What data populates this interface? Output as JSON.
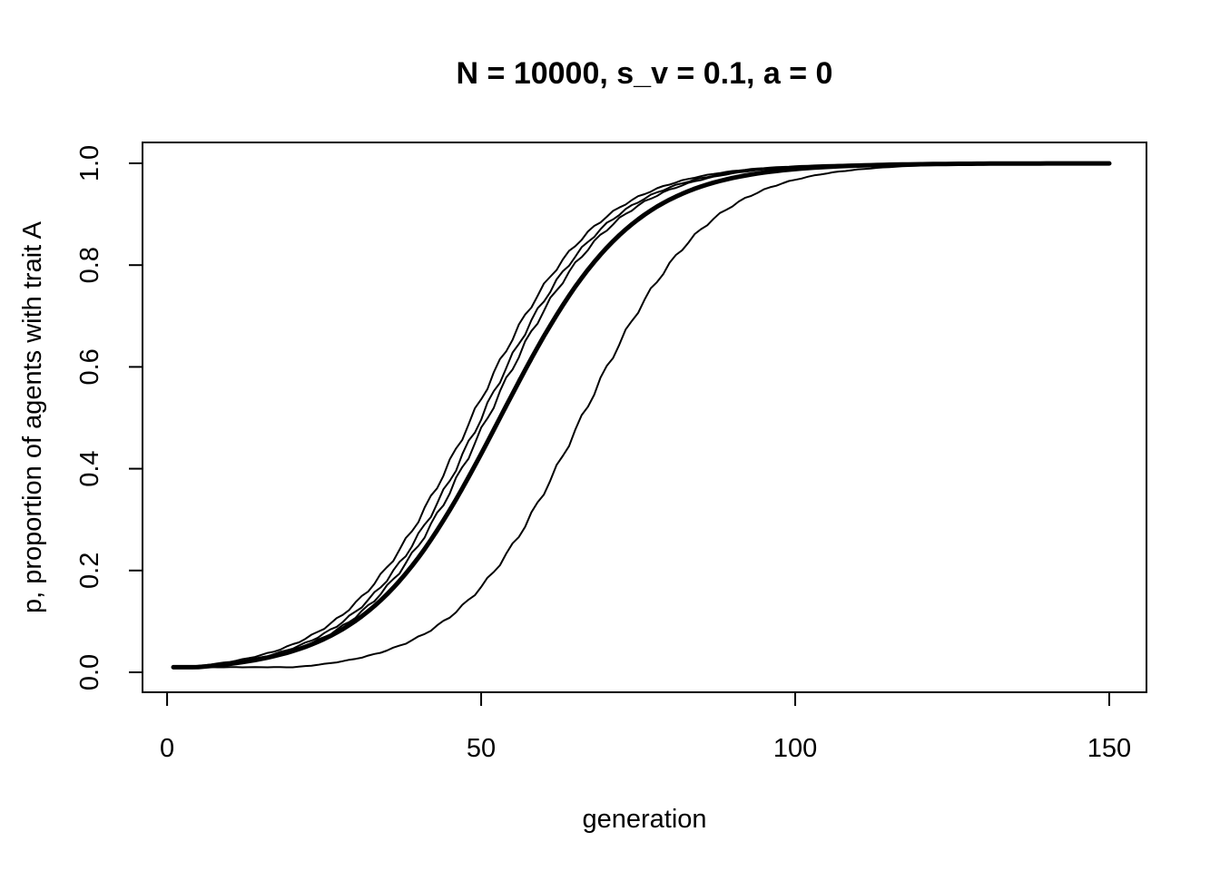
{
  "chart_data": {
    "type": "line",
    "title": "N = 10000, s_v = 0.1, a = 0",
    "xlabel": "generation",
    "ylabel": "p, proportion of agents with trait A",
    "xlim": [
      1,
      150
    ],
    "ylim": [
      0.0,
      1.0
    ],
    "xticks": [
      0,
      50,
      100,
      150
    ],
    "xtick_labels": [
      "0",
      "50",
      "100",
      "150"
    ],
    "yticks": [
      0.0,
      0.2,
      0.4,
      0.6,
      0.8,
      1.0
    ],
    "ytick_labels": [
      "0.0",
      "0.2",
      "0.4",
      "0.6",
      "0.8",
      "1.0"
    ],
    "grid": false,
    "legend": "none",
    "line_color": "#000000",
    "series": [
      {
        "style": "thin",
        "p0": 0.01,
        "midpoint": 48.5,
        "rate": 0.1
      },
      {
        "style": "thin",
        "p0": 0.01,
        "midpoint": 50,
        "rate": 0.1
      },
      {
        "style": "thin",
        "p0": 0.01,
        "midpoint": 51,
        "rate": 0.1
      },
      {
        "style": "thin",
        "p0": 0.01,
        "midpoint": 53,
        "rate": 0.095
      },
      {
        "style": "thin",
        "p0": 0.01,
        "midpoint": 66,
        "rate": 0.1
      },
      {
        "style": "thick",
        "p0": 0.01,
        "midpoint": 53,
        "rate": 0.095
      }
    ]
  }
}
